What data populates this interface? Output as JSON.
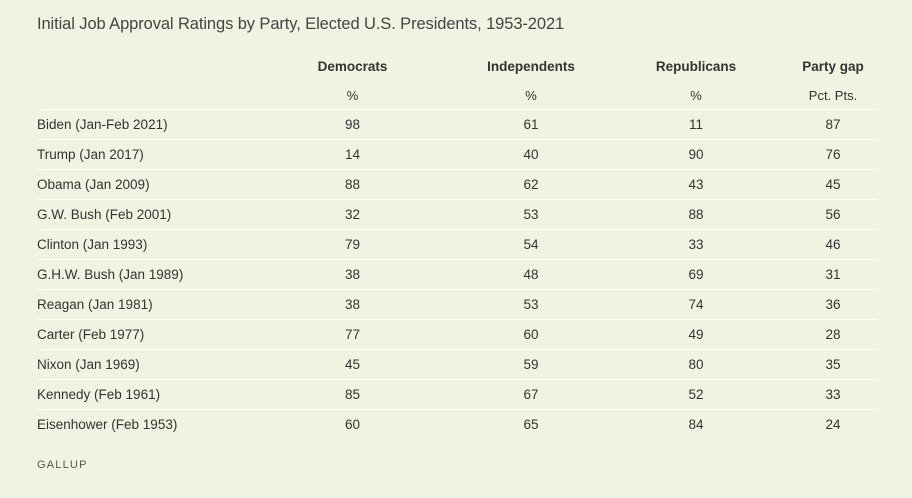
{
  "title": "Initial Job Approval Ratings by Party, Elected U.S. Presidents, 1953-2021",
  "footer": "GALLUP",
  "chart_data": {
    "type": "table",
    "columns": [
      {
        "label": "",
        "unit": ""
      },
      {
        "label": "Democrats",
        "unit": "%"
      },
      {
        "label": "Independents",
        "unit": "%"
      },
      {
        "label": "Republicans",
        "unit": "%"
      },
      {
        "label": "Party gap",
        "unit": "Pct. Pts."
      }
    ],
    "rows": [
      [
        "Biden (Jan-Feb 2021)",
        "98",
        "61",
        "11",
        "87"
      ],
      [
        "Trump (Jan 2017)",
        "14",
        "40",
        "90",
        "76"
      ],
      [
        "Obama (Jan 2009)",
        "88",
        "62",
        "43",
        "45"
      ],
      [
        "G.W. Bush (Feb 2001)",
        "32",
        "53",
        "88",
        "56"
      ],
      [
        "Clinton (Jan 1993)",
        "79",
        "54",
        "33",
        "46"
      ],
      [
        "G.H.W. Bush (Jan 1989)",
        "38",
        "48",
        "69",
        "31"
      ],
      [
        "Reagan (Jan 1981)",
        "38",
        "53",
        "74",
        "36"
      ],
      [
        "Carter (Feb 1977)",
        "77",
        "60",
        "49",
        "28"
      ],
      [
        "Nixon (Jan 1969)",
        "45",
        "59",
        "80",
        "35"
      ],
      [
        "Kennedy (Feb 1961)",
        "85",
        "67",
        "52",
        "33"
      ],
      [
        "Eisenhower (Feb 1953)",
        "60",
        "65",
        "84",
        "24"
      ]
    ]
  }
}
